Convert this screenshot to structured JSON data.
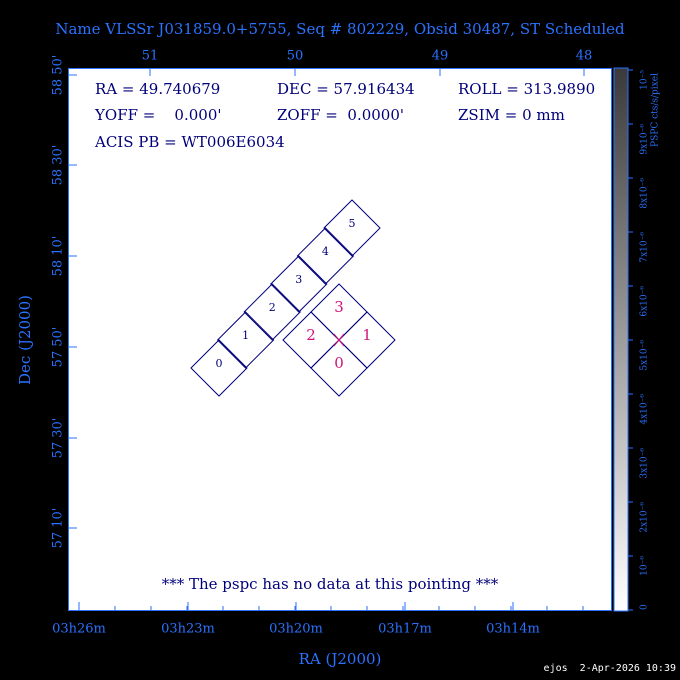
{
  "title": "Name VLSSr J031859.0+5755, Seq # 802229, Obsid 30487, ST Scheduled",
  "top_axis": {
    "ticks": [
      "51",
      "50",
      "49",
      "48"
    ]
  },
  "bottom_axis": {
    "label": "RA (J2000)",
    "ticks": [
      "03h26m",
      "03h23m",
      "03h20m",
      "03h17m",
      "03h14m"
    ]
  },
  "left_axis": {
    "label": "Dec (J2000)",
    "ticks": [
      "58 50'",
      "58 30'",
      "58 10'",
      "57 50'",
      "57 30'",
      "57 10'"
    ]
  },
  "info": [
    [
      "RA = 49.740679",
      "DEC = 57.916434",
      "ROLL = 313.9890"
    ],
    [
      "YOFF =    0.000'",
      "ZOFF =  0.0000'",
      "ZSIM = 0 mm"
    ],
    [
      "ACIS PB = WT006E6034"
    ]
  ],
  "chips": {
    "s_array": [
      "0",
      "1",
      "2",
      "3",
      "4",
      "5"
    ],
    "i_array": [
      "0",
      "1",
      "2",
      "3"
    ]
  },
  "note": "*** The pspc has no data at this pointing ***",
  "colorbar": {
    "label": "PSPC cts/s/pixel",
    "ticks": [
      "0",
      "10⁻⁶",
      "2x10⁻⁶",
      "3x10⁻⁶",
      "4x10⁻⁶",
      "5x10⁻⁶",
      "6x10⁻⁶",
      "7x10⁻⁶",
      "8x10⁻⁶",
      "9x10⁻⁶",
      "10⁻⁵"
    ]
  },
  "footer": "ejos  2-Apr-2026 10:39"
}
